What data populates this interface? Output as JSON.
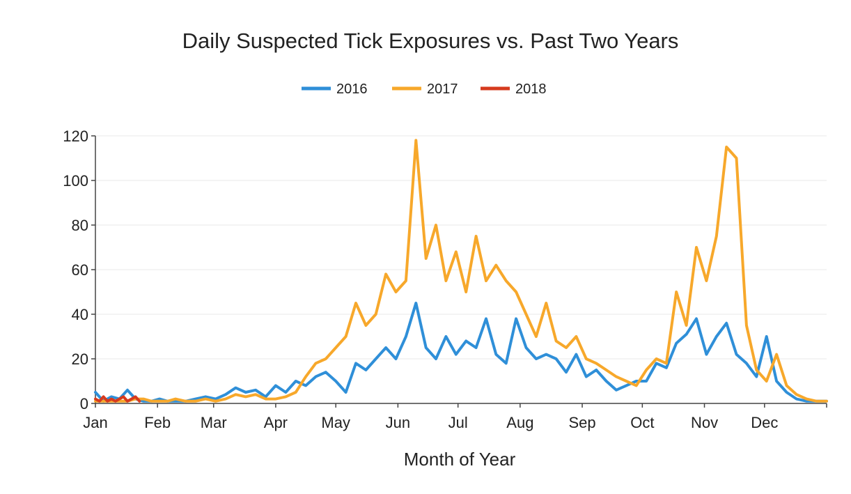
{
  "chart_data": {
    "type": "line",
    "title": "Daily Suspected Tick Exposures vs. Past Two Years",
    "xlabel": "Month of Year",
    "ylabel": "",
    "x_tick_labels": [
      "Jan",
      "Feb",
      "Mar",
      "Apr",
      "May",
      "Jun",
      "Jul",
      "Aug",
      "Sep",
      "Oct",
      "Nov",
      "Dec"
    ],
    "xlim": [
      0,
      365
    ],
    "ylim": [
      0,
      120
    ],
    "y_ticks": [
      0,
      20,
      40,
      60,
      80,
      100,
      120
    ],
    "grid": true,
    "legend_position": "top-center",
    "series": [
      {
        "name": "2016",
        "color": "#2f8fd8",
        "x": [
          0,
          4,
          8,
          12,
          16,
          20,
          24,
          28,
          32,
          36,
          40,
          45,
          50,
          55,
          60,
          65,
          70,
          75,
          80,
          85,
          90,
          95,
          100,
          105,
          110,
          115,
          120,
          125,
          130,
          135,
          140,
          145,
          150,
          155,
          160,
          165,
          170,
          175,
          180,
          185,
          190,
          195,
          200,
          205,
          210,
          215,
          220,
          225,
          230,
          235,
          240,
          245,
          250,
          255,
          260,
          265,
          270,
          275,
          280,
          285,
          290,
          295,
          300,
          305,
          310,
          315,
          320,
          325,
          330,
          335,
          340,
          345,
          350,
          355,
          360,
          365
        ],
        "y": [
          5,
          1,
          3,
          2,
          6,
          2,
          1,
          1,
          2,
          1,
          1,
          1,
          2,
          3,
          2,
          4,
          7,
          5,
          6,
          3,
          8,
          5,
          10,
          8,
          12,
          14,
          10,
          5,
          18,
          15,
          20,
          25,
          20,
          30,
          45,
          25,
          20,
          30,
          22,
          28,
          25,
          38,
          22,
          18,
          38,
          25,
          20,
          22,
          20,
          14,
          22,
          12,
          15,
          10,
          6,
          8,
          10,
          10,
          18,
          16,
          27,
          31,
          38,
          22,
          30,
          36,
          22,
          18,
          12,
          30,
          10,
          5,
          2,
          1,
          1,
          1
        ]
      },
      {
        "name": "2017",
        "color": "#f7a82b",
        "x": [
          0,
          4,
          8,
          12,
          16,
          20,
          24,
          28,
          32,
          36,
          40,
          45,
          50,
          55,
          60,
          65,
          70,
          75,
          80,
          85,
          90,
          95,
          100,
          105,
          110,
          115,
          120,
          125,
          130,
          135,
          140,
          145,
          150,
          155,
          160,
          165,
          170,
          175,
          180,
          185,
          190,
          195,
          200,
          205,
          210,
          215,
          220,
          225,
          230,
          235,
          240,
          245,
          250,
          255,
          260,
          265,
          270,
          275,
          280,
          285,
          290,
          295,
          300,
          305,
          310,
          315,
          320,
          325,
          330,
          335,
          340,
          345,
          350,
          355,
          360,
          365
        ],
        "y": [
          1,
          1,
          1,
          1,
          1,
          2,
          2,
          1,
          1,
          1,
          2,
          1,
          1,
          2,
          1,
          2,
          4,
          3,
          4,
          2,
          2,
          3,
          5,
          12,
          18,
          20,
          25,
          30,
          45,
          35,
          40,
          58,
          50,
          55,
          118,
          65,
          80,
          55,
          68,
          50,
          75,
          55,
          62,
          55,
          50,
          40,
          30,
          45,
          28,
          25,
          30,
          20,
          18,
          15,
          12,
          10,
          8,
          15,
          20,
          18,
          50,
          35,
          70,
          55,
          75,
          115,
          110,
          35,
          15,
          10,
          22,
          8,
          4,
          2,
          1,
          1
        ]
      },
      {
        "name": "2018",
        "color": "#d63a1e",
        "x": [
          0,
          2,
          4,
          6,
          8,
          10,
          12,
          14,
          16,
          18,
          20,
          22
        ],
        "y": [
          2,
          1,
          3,
          1,
          2,
          1,
          2,
          3,
          1,
          2,
          3,
          1
        ]
      }
    ]
  }
}
